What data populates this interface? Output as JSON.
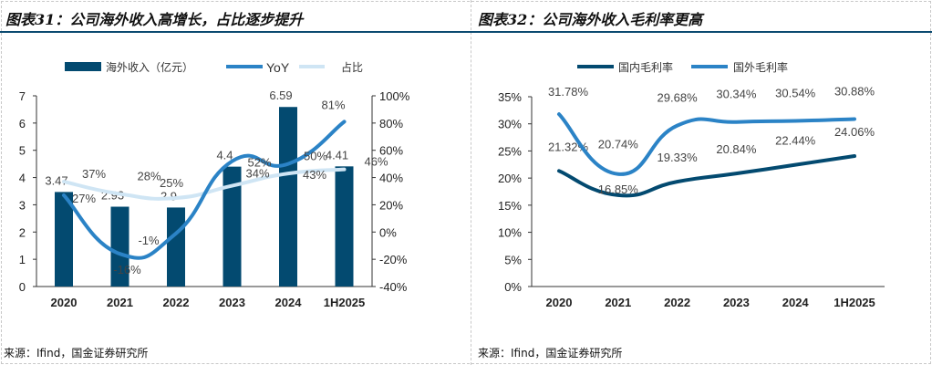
{
  "chart_data": [
    {
      "type": "bar",
      "title": "图表31：公司海外收入高增长，占比逐步提升",
      "categories": [
        "2020",
        "2021",
        "2022",
        "2023",
        "2024",
        "1H2025"
      ],
      "series": [
        {
          "name": "海外收入（亿元）",
          "axis": "left",
          "kind": "bar",
          "values": [
            3.47,
            2.93,
            2.9,
            4.4,
            6.59,
            4.41
          ],
          "labels": [
            "3.47",
            "2.93",
            "2.9",
            "4.4",
            "6.59",
            "4.41"
          ],
          "color": "#034a70"
        },
        {
          "name": "YoY",
          "axis": "right",
          "kind": "line",
          "values": [
            27,
            -16,
            -1,
            52,
            50,
            81
          ],
          "labels": [
            "27%",
            "-16%",
            "-1%",
            "52%",
            "50%",
            "81%"
          ],
          "color": "#2b83c6"
        },
        {
          "name": "占比",
          "axis": "right",
          "kind": "line",
          "values": [
            37,
            28,
            25,
            34,
            43,
            46
          ],
          "labels": [
            "37%",
            "28%",
            "25%",
            "34%",
            "43%",
            "46%"
          ],
          "color": "#cfe5f4"
        }
      ],
      "ylim": [
        0,
        7
      ],
      "yticks": [
        "0",
        "1",
        "2",
        "3",
        "4",
        "5",
        "6",
        "7"
      ],
      "y2lim": [
        -40,
        100
      ],
      "y2ticks": [
        "-40%",
        "-20%",
        "0%",
        "20%",
        "40%",
        "60%",
        "80%",
        "100%"
      ],
      "legend": "top"
    },
    {
      "type": "line",
      "title": "图表32：公司海外收入毛利率更高",
      "categories": [
        "2020",
        "2021",
        "2022",
        "2023",
        "2024",
        "1H2025"
      ],
      "series": [
        {
          "name": "国内毛利率",
          "values": [
            21.32,
            16.85,
            19.33,
            20.84,
            22.44,
            24.06
          ],
          "labels": [
            "21.32%",
            "16.85%",
            "19.33%",
            "20.84%",
            "22.44%",
            "24.06%"
          ],
          "color": "#034a70"
        },
        {
          "name": "国外毛利率",
          "values": [
            31.78,
            20.74,
            29.68,
            30.34,
            30.54,
            30.88
          ],
          "labels": [
            "31.78%",
            "20.74%",
            "29.68%",
            "30.34%",
            "30.54%",
            "30.88%"
          ],
          "color": "#2b83c6"
        }
      ],
      "ylim": [
        0,
        35
      ],
      "yticks": [
        "0%",
        "5%",
        "10%",
        "15%",
        "20%",
        "25%",
        "30%",
        "35%"
      ],
      "legend": "top"
    }
  ],
  "source": "来源：Ifind，国金证券研究所"
}
